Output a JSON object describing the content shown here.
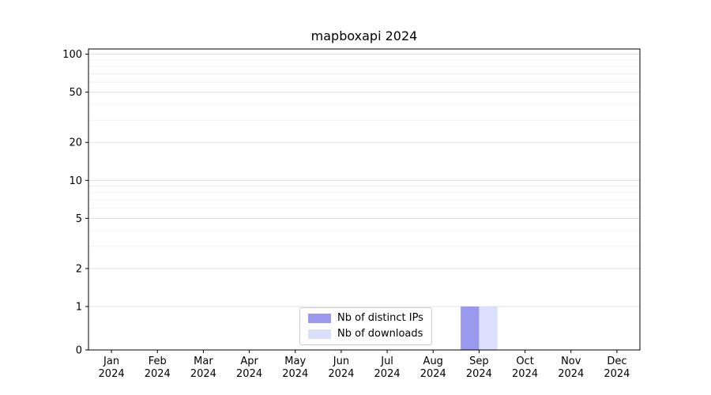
{
  "chart_data": {
    "type": "bar",
    "title": "mapboxapi 2024",
    "categories": [
      "Jan",
      "Feb",
      "Mar",
      "Apr",
      "May",
      "Jun",
      "Jul",
      "Aug",
      "Sep",
      "Oct",
      "Nov",
      "Dec"
    ],
    "category_year": "2024",
    "series": [
      {
        "name": "Nb of distinct IPs",
        "color": "#9999ee",
        "values": [
          0,
          0,
          0,
          0,
          0,
          0,
          0,
          0,
          1,
          0,
          0,
          0
        ]
      },
      {
        "name": "Nb of downloads",
        "color": "#dcdffb",
        "values": [
          0,
          0,
          0,
          0,
          0,
          0,
          0,
          0,
          1,
          0,
          0,
          0
        ]
      }
    ],
    "yscale": "symlog",
    "yticks": [
      0,
      1,
      2,
      5,
      10,
      20,
      50,
      100
    ],
    "yminor": [
      3,
      4,
      6,
      7,
      8,
      9,
      30,
      40,
      60,
      70,
      80,
      90
    ],
    "ylim": [
      0,
      110
    ],
    "xlabel": "",
    "ylabel": "",
    "grid": true,
    "legend_position": "lower center",
    "axis_color": "#000000",
    "grid_major_color": "#d9d9d9",
    "grid_minor_color": "#ededed"
  }
}
